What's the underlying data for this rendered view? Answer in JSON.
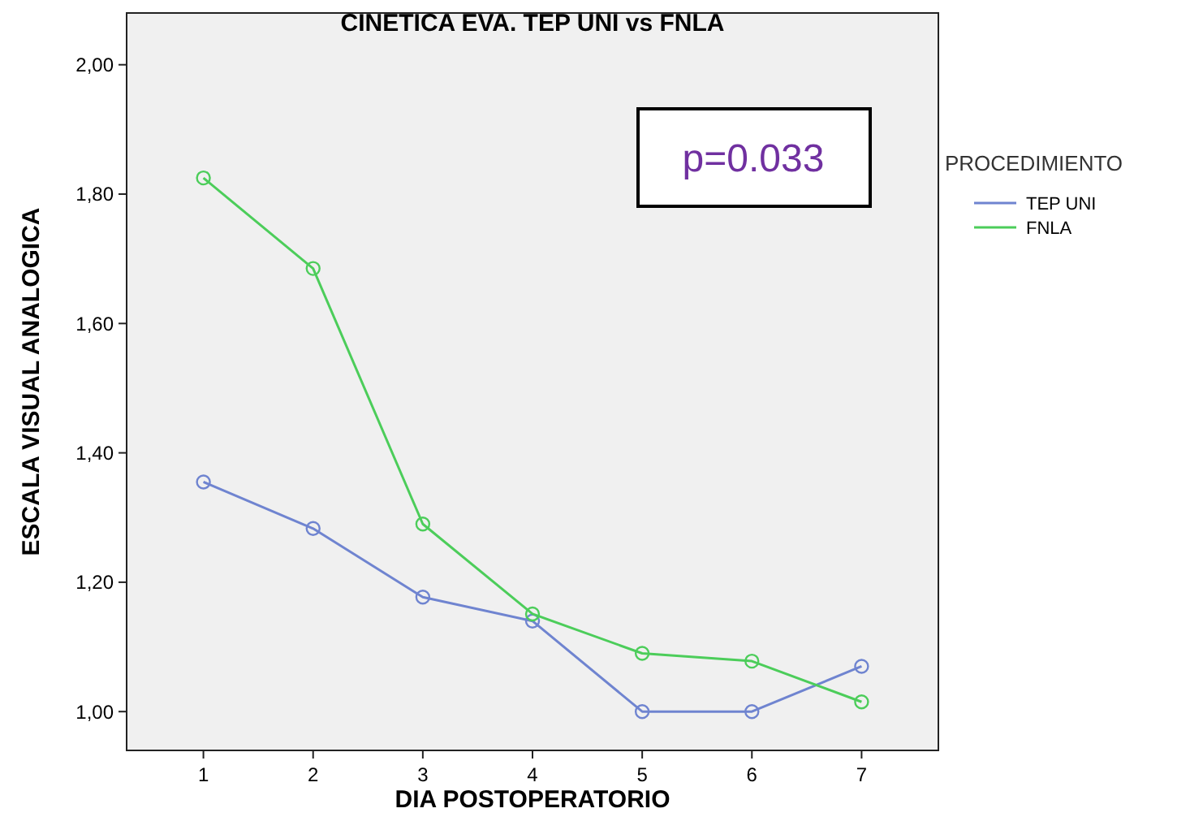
{
  "chart_data": {
    "type": "line",
    "title": "CINETICA EVA. TEP UNI vs FNLA",
    "xlabel": "DIA POSTOPERATORIO",
    "ylabel": "ESCALA VISUAL ANALOGICA",
    "legend_title": "PROCEDIMIENTO",
    "legend": "right",
    "marker": "circle",
    "grid": false,
    "categories": [
      "1",
      "2",
      "3",
      "4",
      "5",
      "6",
      "7"
    ],
    "ylim": [
      0.94,
      2.08
    ],
    "yticks": [
      {
        "value": 1,
        "label": "1,00"
      },
      {
        "value": 1.2,
        "label": "1,20"
      },
      {
        "value": 1.4,
        "label": "1,40"
      },
      {
        "value": 1.6,
        "label": "1,60"
      },
      {
        "value": 1.8,
        "label": "1,80"
      },
      {
        "value": 2,
        "label": "2,00"
      }
    ],
    "series": [
      {
        "name": "TEP UNI",
        "color": "#6f84d0",
        "values": [
          1.355,
          1.283,
          1.177,
          1.14,
          1.0,
          1.0,
          1.07
        ]
      },
      {
        "name": "FNLA",
        "color": "#4ccd5a",
        "values": [
          1.825,
          1.685,
          1.29,
          1.151,
          1.09,
          1.078,
          1.015
        ]
      }
    ],
    "annotations": [
      "p=0.033"
    ]
  }
}
